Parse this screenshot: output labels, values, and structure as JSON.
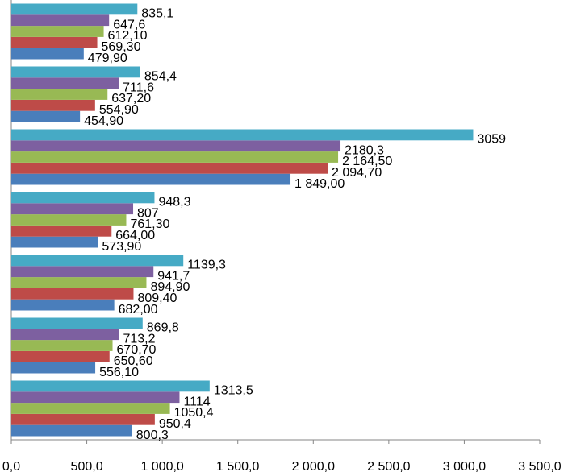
{
  "chart_data": {
    "type": "hbar",
    "categories": [
      null,
      null,
      null,
      null,
      null,
      null,
      null
    ],
    "series": [
      {
        "color": "#4a7ebb",
        "values": [
          479.9,
          454.9,
          1849,
          573.9,
          682,
          556.1,
          800.3
        ],
        "value_labels": [
          "479,90",
          "454,90",
          "1 849,00",
          "573,90",
          "682,00",
          "556,10",
          "800,3"
        ]
      },
      {
        "color": "#be4b48",
        "values": [
          569.3,
          554.9,
          2094.7,
          664,
          809.4,
          650.6,
          950.4
        ],
        "value_labels": [
          "569,30",
          "554,90",
          "2 094,70",
          "664,00",
          "809,40",
          "650,60",
          "950,4"
        ]
      },
      {
        "color": "#98b954",
        "values": [
          612.1,
          637.2,
          2164.5,
          761.3,
          894.9,
          670.7,
          1050.4
        ],
        "value_labels": [
          "612,10",
          "637,20",
          "2 164,50",
          "761,30",
          "894,90",
          "670,70",
          "1050,4"
        ]
      },
      {
        "color": "#7d60a0",
        "values": [
          647.6,
          711.6,
          2180.3,
          807,
          941.7,
          713.2,
          1114
        ],
        "value_labels": [
          "647,6",
          "711,6",
          "2180,3",
          "807",
          "941,7",
          "713,2",
          "1114"
        ]
      },
      {
        "color": "#46aac5",
        "values": [
          835.1,
          854.4,
          3059,
          948.3,
          1139.3,
          869.8,
          1313.5
        ],
        "value_labels": [
          "835,1",
          "854,4",
          "3059",
          "948,3",
          "1139,3",
          "869,8",
          "1313,5"
        ]
      }
    ],
    "xlim": [
      0,
      3500
    ],
    "xticks": [
      {
        "value": 0,
        "label": "0,0"
      },
      {
        "value": 500,
        "label": "500,0"
      },
      {
        "value": 1000,
        "label": "1 000,0"
      },
      {
        "value": 1500,
        "label": "1 500,0"
      },
      {
        "value": 2000,
        "label": "2 000,0"
      },
      {
        "value": 2500,
        "label": "2 500,0"
      },
      {
        "value": 3000,
        "label": "3 000,0"
      },
      {
        "value": 3500,
        "label": "3 500,0"
      }
    ]
  }
}
